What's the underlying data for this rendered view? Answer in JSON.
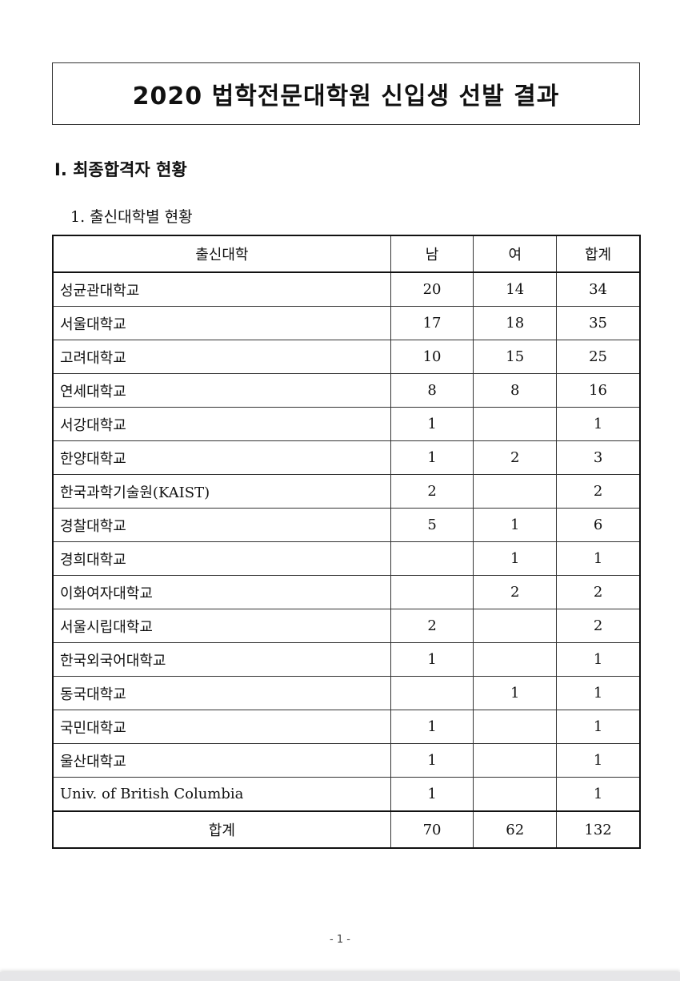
{
  "title": "2020 법학전문대학원 신입생 선발 결과",
  "section_heading": "Ⅰ. 최종합격자 현황",
  "subsection_heading": "1. 출신대학별 현황",
  "table": {
    "headers": [
      "출신대학",
      "남",
      "여",
      "합계"
    ],
    "rows": [
      [
        "성균관대학교",
        "20",
        "14",
        "34"
      ],
      [
        "서울대학교",
        "17",
        "18",
        "35"
      ],
      [
        "고려대학교",
        "10",
        "15",
        "25"
      ],
      [
        "연세대학교",
        "8",
        "8",
        "16"
      ],
      [
        "서강대학교",
        "1",
        "",
        "1"
      ],
      [
        "한양대학교",
        "1",
        "2",
        "3"
      ],
      [
        "한국과학기술원(KAIST)",
        "2",
        "",
        "2"
      ],
      [
        "경찰대학교",
        "5",
        "1",
        "6"
      ],
      [
        "경희대학교",
        "",
        "1",
        "1"
      ],
      [
        "이화여자대학교",
        "",
        "2",
        "2"
      ],
      [
        "서울시립대학교",
        "2",
        "",
        "2"
      ],
      [
        "한국외국어대학교",
        "1",
        "",
        "1"
      ],
      [
        "동국대학교",
        "",
        "1",
        "1"
      ],
      [
        "국민대학교",
        "1",
        "",
        "1"
      ],
      [
        "울산대학교",
        "1",
        "",
        "1"
      ],
      [
        "Univ. of British Columbia",
        "1",
        "",
        "1"
      ]
    ],
    "total": [
      "합계",
      "70",
      "62",
      "132"
    ]
  },
  "page_number": "- 1 -"
}
